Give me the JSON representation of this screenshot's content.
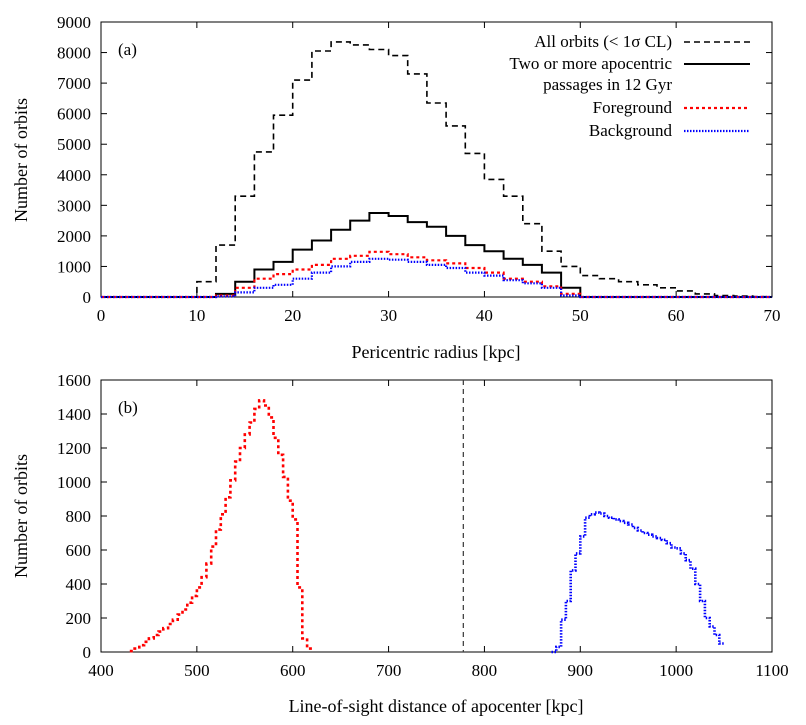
{
  "chart_data": [
    {
      "type": "line",
      "panel_label": "(a)",
      "xlabel": "Pericentric radius [kpc]",
      "ylabel": "Number of orbits",
      "xlim": [
        0,
        70
      ],
      "ylim": [
        0,
        9000
      ],
      "xticks": [
        0,
        10,
        20,
        30,
        40,
        50,
        60,
        70
      ],
      "yticks": [
        0,
        1000,
        2000,
        3000,
        4000,
        5000,
        6000,
        7000,
        8000,
        9000
      ],
      "legend_position": "top-right",
      "bin_edges": [
        0,
        2,
        4,
        6,
        8,
        10,
        12,
        14,
        16,
        18,
        20,
        22,
        24,
        26,
        28,
        30,
        32,
        34,
        36,
        38,
        40,
        42,
        44,
        46,
        48,
        50,
        52,
        54,
        56,
        58,
        60,
        62,
        64,
        66,
        68,
        70
      ],
      "series": [
        {
          "name": "All orbits (< 1σ CL)",
          "color": "#000000",
          "dash": "6,4",
          "values": [
            0,
            0,
            0,
            0,
            0,
            500,
            1700,
            3300,
            4750,
            5950,
            7100,
            8050,
            8350,
            8250,
            8100,
            7900,
            7300,
            6350,
            5600,
            4700,
            3850,
            3300,
            2400,
            1500,
            1000,
            700,
            600,
            500,
            400,
            300,
            200,
            100,
            50,
            30,
            10
          ]
        },
        {
          "name": "Two or more apocentric",
          "name2": "passages in 12 Gyr",
          "color": "#000000",
          "dash": "",
          "values": [
            0,
            0,
            0,
            0,
            0,
            0,
            100,
            500,
            900,
            1150,
            1550,
            1850,
            2200,
            2500,
            2750,
            2650,
            2450,
            2300,
            2000,
            1700,
            1500,
            1250,
            1050,
            800,
            300,
            0,
            0,
            0,
            0,
            0,
            0,
            0,
            0,
            0,
            0
          ]
        },
        {
          "name": "Foreground",
          "color": "#ff0000",
          "dash": "3,3",
          "values": [
            0,
            0,
            0,
            0,
            0,
            0,
            50,
            300,
            600,
            750,
            900,
            1050,
            1250,
            1350,
            1480,
            1400,
            1300,
            1200,
            1100,
            950,
            800,
            600,
            500,
            350,
            100,
            0,
            0,
            0,
            0,
            0,
            0,
            0,
            0,
            0,
            0
          ]
        },
        {
          "name": "Background",
          "color": "#0000ff",
          "dash": "1.5,1.5",
          "values": [
            0,
            0,
            0,
            0,
            0,
            0,
            20,
            150,
            300,
            400,
            600,
            800,
            1000,
            1150,
            1250,
            1220,
            1150,
            1050,
            950,
            800,
            700,
            550,
            450,
            300,
            50,
            0,
            0,
            0,
            0,
            0,
            0,
            0,
            0,
            0,
            0
          ]
        }
      ]
    },
    {
      "type": "line",
      "panel_label": "(b)",
      "xlabel": "Line-of-sight distance of apocenter [kpc]",
      "ylabel": "Number of orbits",
      "xlim": [
        400,
        1100
      ],
      "ylim": [
        0,
        1600
      ],
      "xticks": [
        400,
        500,
        600,
        700,
        800,
        900,
        1000,
        1100
      ],
      "yticks": [
        0,
        200,
        400,
        600,
        800,
        1000,
        1200,
        1400,
        1600
      ],
      "vline": 778,
      "series": [
        {
          "color": "#ff0000",
          "dash": "3,3",
          "bin_start": 430,
          "bin_width": 5,
          "values": [
            5,
            20,
            40,
            60,
            80,
            100,
            120,
            140,
            165,
            190,
            220,
            250,
            290,
            330,
            380,
            440,
            520,
            620,
            720,
            810,
            910,
            1010,
            1120,
            1200,
            1280,
            1350,
            1430,
            1480,
            1450,
            1380,
            1260,
            1160,
            1030,
            890,
            780,
            380,
            80,
            20
          ]
        },
        {
          "color": "#0000ff",
          "dash": "1.5,1.5",
          "bin_start": 870,
          "bin_width": 5,
          "values": [
            0,
            30,
            190,
            300,
            480,
            580,
            680,
            790,
            810,
            820,
            815,
            800,
            790,
            780,
            770,
            760,
            750,
            730,
            715,
            700,
            690,
            680,
            670,
            660,
            640,
            615,
            610,
            580,
            540,
            490,
            400,
            300,
            200,
            150,
            100,
            50
          ]
        }
      ]
    }
  ]
}
